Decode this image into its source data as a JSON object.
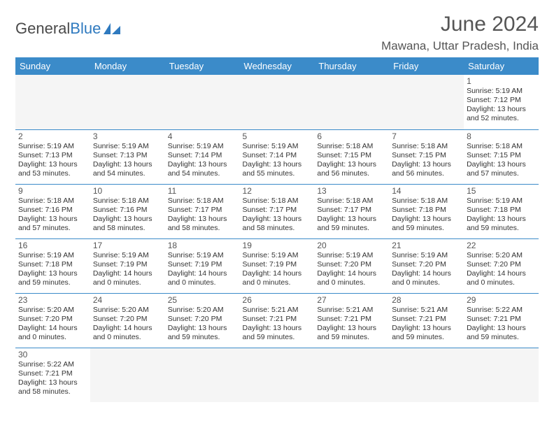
{
  "logo": {
    "text1": "General",
    "text2": "Blue"
  },
  "title": "June 2024",
  "location": "Mawana, Uttar Pradesh, India",
  "colors": {
    "header_bg": "#3b8bc9",
    "header_text": "#ffffff",
    "cell_border": "#3b8bc9",
    "text": "#333333",
    "empty_bg": "#f5f5f5"
  },
  "dayHeaders": [
    "Sunday",
    "Monday",
    "Tuesday",
    "Wednesday",
    "Thursday",
    "Friday",
    "Saturday"
  ],
  "weeks": [
    [
      null,
      null,
      null,
      null,
      null,
      null,
      {
        "n": "1",
        "sr": "5:19 AM",
        "ss": "7:12 PM",
        "dl": "13 hours and 52 minutes."
      }
    ],
    [
      {
        "n": "2",
        "sr": "5:19 AM",
        "ss": "7:13 PM",
        "dl": "13 hours and 53 minutes."
      },
      {
        "n": "3",
        "sr": "5:19 AM",
        "ss": "7:13 PM",
        "dl": "13 hours and 54 minutes."
      },
      {
        "n": "4",
        "sr": "5:19 AM",
        "ss": "7:14 PM",
        "dl": "13 hours and 54 minutes."
      },
      {
        "n": "5",
        "sr": "5:19 AM",
        "ss": "7:14 PM",
        "dl": "13 hours and 55 minutes."
      },
      {
        "n": "6",
        "sr": "5:18 AM",
        "ss": "7:15 PM",
        "dl": "13 hours and 56 minutes."
      },
      {
        "n": "7",
        "sr": "5:18 AM",
        "ss": "7:15 PM",
        "dl": "13 hours and 56 minutes."
      },
      {
        "n": "8",
        "sr": "5:18 AM",
        "ss": "7:15 PM",
        "dl": "13 hours and 57 minutes."
      }
    ],
    [
      {
        "n": "9",
        "sr": "5:18 AM",
        "ss": "7:16 PM",
        "dl": "13 hours and 57 minutes."
      },
      {
        "n": "10",
        "sr": "5:18 AM",
        "ss": "7:16 PM",
        "dl": "13 hours and 58 minutes."
      },
      {
        "n": "11",
        "sr": "5:18 AM",
        "ss": "7:17 PM",
        "dl": "13 hours and 58 minutes."
      },
      {
        "n": "12",
        "sr": "5:18 AM",
        "ss": "7:17 PM",
        "dl": "13 hours and 58 minutes."
      },
      {
        "n": "13",
        "sr": "5:18 AM",
        "ss": "7:17 PM",
        "dl": "13 hours and 59 minutes."
      },
      {
        "n": "14",
        "sr": "5:18 AM",
        "ss": "7:18 PM",
        "dl": "13 hours and 59 minutes."
      },
      {
        "n": "15",
        "sr": "5:19 AM",
        "ss": "7:18 PM",
        "dl": "13 hours and 59 minutes."
      }
    ],
    [
      {
        "n": "16",
        "sr": "5:19 AM",
        "ss": "7:18 PM",
        "dl": "13 hours and 59 minutes."
      },
      {
        "n": "17",
        "sr": "5:19 AM",
        "ss": "7:19 PM",
        "dl": "14 hours and 0 minutes."
      },
      {
        "n": "18",
        "sr": "5:19 AM",
        "ss": "7:19 PM",
        "dl": "14 hours and 0 minutes."
      },
      {
        "n": "19",
        "sr": "5:19 AM",
        "ss": "7:19 PM",
        "dl": "14 hours and 0 minutes."
      },
      {
        "n": "20",
        "sr": "5:19 AM",
        "ss": "7:20 PM",
        "dl": "14 hours and 0 minutes."
      },
      {
        "n": "21",
        "sr": "5:19 AM",
        "ss": "7:20 PM",
        "dl": "14 hours and 0 minutes."
      },
      {
        "n": "22",
        "sr": "5:20 AM",
        "ss": "7:20 PM",
        "dl": "14 hours and 0 minutes."
      }
    ],
    [
      {
        "n": "23",
        "sr": "5:20 AM",
        "ss": "7:20 PM",
        "dl": "14 hours and 0 minutes."
      },
      {
        "n": "24",
        "sr": "5:20 AM",
        "ss": "7:20 PM",
        "dl": "14 hours and 0 minutes."
      },
      {
        "n": "25",
        "sr": "5:20 AM",
        "ss": "7:20 PM",
        "dl": "13 hours and 59 minutes."
      },
      {
        "n": "26",
        "sr": "5:21 AM",
        "ss": "7:21 PM",
        "dl": "13 hours and 59 minutes."
      },
      {
        "n": "27",
        "sr": "5:21 AM",
        "ss": "7:21 PM",
        "dl": "13 hours and 59 minutes."
      },
      {
        "n": "28",
        "sr": "5:21 AM",
        "ss": "7:21 PM",
        "dl": "13 hours and 59 minutes."
      },
      {
        "n": "29",
        "sr": "5:22 AM",
        "ss": "7:21 PM",
        "dl": "13 hours and 59 minutes."
      }
    ],
    [
      {
        "n": "30",
        "sr": "5:22 AM",
        "ss": "7:21 PM",
        "dl": "13 hours and 58 minutes."
      },
      null,
      null,
      null,
      null,
      null,
      null
    ]
  ],
  "labels": {
    "sunrise": "Sunrise: ",
    "sunset": "Sunset: ",
    "daylight": "Daylight: "
  }
}
